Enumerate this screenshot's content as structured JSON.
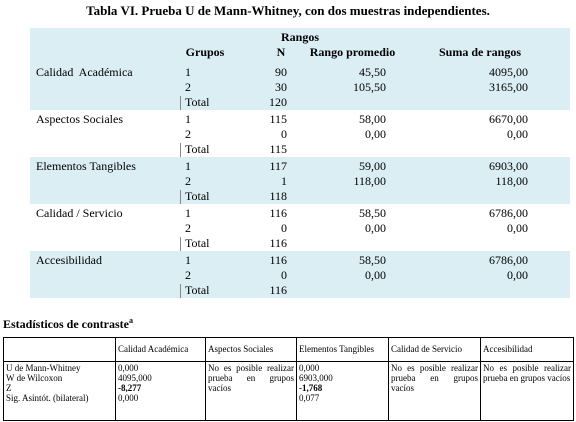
{
  "title": "Tabla VI. Prueba U de Mann-Whitney, con dos muestras independientes.",
  "ranks": {
    "caption": "Rangos",
    "headers": [
      "Grupos",
      "N",
      "Rango promedio",
      "Suma de rangos"
    ],
    "variables": [
      {
        "name": "Calidad  Académica",
        "rows": [
          [
            "1",
            "90",
            "45,50",
            "4095,00"
          ],
          [
            "2",
            "30",
            "105,50",
            "3165,00"
          ],
          [
            "Total",
            "120"
          ]
        ]
      },
      {
        "name": "Aspectos Sociales",
        "rows": [
          [
            "1",
            "115",
            "58,00",
            "6670,00"
          ],
          [
            "2",
            "0",
            "0,00",
            "0,00"
          ],
          [
            "Total",
            "115"
          ]
        ]
      },
      {
        "name": "Elementos Tangibles",
        "rows": [
          [
            "1",
            "117",
            "59,00",
            "6903,00"
          ],
          [
            "2",
            "1",
            "118,00",
            "118,00"
          ],
          [
            "Total",
            "118"
          ]
        ]
      },
      {
        "name": "Calidad / Servicio",
        "rows": [
          [
            "1",
            "116",
            "58,50",
            "6786,00"
          ],
          [
            "2",
            "0",
            "0,00",
            "0,00"
          ],
          [
            "Total",
            "116"
          ]
        ]
      },
      {
        "name": "Accesibilidad",
        "rows": [
          [
            "1",
            "116",
            "58,50",
            "6786,00"
          ],
          [
            "2",
            "0",
            "0,00",
            "0,00"
          ],
          [
            "Total",
            "116"
          ]
        ]
      }
    ]
  },
  "stats": {
    "title": "Estadísticos de contraste",
    "footnote_mark": "a",
    "headers": [
      "Calidad Académica",
      "Aspectos Sociales",
      "Elementos Tangibles",
      "Calidad de Servicio",
      "Accesibilidad"
    ],
    "row_labels": [
      "U de Mann-Whitney",
      "W de Wilcoxon",
      "Z",
      "Sig. Asintót. (bilateral)"
    ],
    "columns": [
      [
        "0,000",
        "4095,000",
        "-8,277",
        "0,000"
      ],
      [
        "No es posible realizar prueba en grupos vacíos"
      ],
      [
        "0,000",
        "6903,000",
        "-1,768",
        "0,077"
      ],
      [
        "No es posible realizar prueba en grupos vacíos"
      ],
      [
        "No es posible realizar prueba en grupos vacíos"
      ]
    ]
  }
}
